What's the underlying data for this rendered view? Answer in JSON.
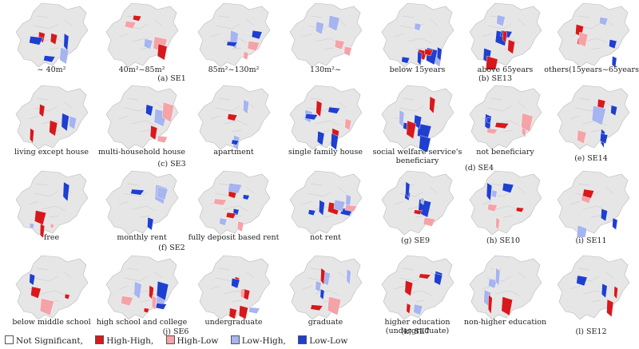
{
  "panels": [
    {
      "label": "~ 40m²"
    },
    {
      "label": "40m²~85m²"
    },
    {
      "label": "85m²~130m²"
    },
    {
      "label": "130m²~"
    },
    {
      "label": "below 15years"
    },
    {
      "label": "above 65years"
    },
    {
      "label": "others(15years~65years)"
    },
    {
      "label": "living except house"
    },
    {
      "label": "multi-household house"
    },
    {
      "label": "apartment"
    },
    {
      "label": "single family house"
    },
    {
      "label": "social welfare service's beneficiary"
    },
    {
      "label": "not beneficiary"
    },
    {
      "label": ""
    },
    {
      "label": "free"
    },
    {
      "label": "monthly rent"
    },
    {
      "label": "fully deposit based  rent"
    },
    {
      "label": "not rent"
    },
    {
      "label": ""
    },
    {
      "label": ""
    },
    {
      "label": ""
    },
    {
      "label": "below middle school"
    },
    {
      "label": "high school and college"
    },
    {
      "label": "undergraduate"
    },
    {
      "label": "graduate"
    },
    {
      "label": "higher education (undergraduate)"
    },
    {
      "label": "non-higher education"
    },
    {
      "label": ""
    }
  ],
  "groups": [
    "(a)  SE1",
    "(b)  SE13",
    "(c)  SE3",
    "(d)  SE4",
    "(e)  SE14",
    "(f)  SE2",
    "(g)  SE9",
    "(h)  SE10",
    "(i)  SE11",
    "(j)  SE6",
    "(k)  SE7",
    "(l)  SE12"
  ],
  "legend": [
    {
      "label": "Not Significant,",
      "color": "#ffffff"
    },
    {
      "label": "High-High,",
      "color": "#d7191c"
    },
    {
      "label": "High-Low",
      "color": "#f4a3a8"
    },
    {
      "label": "Low-High,",
      "color": "#a6b4ef"
    },
    {
      "label": "Low-Low",
      "color": "#1f3fd0"
    }
  ],
  "colors": {
    "base": "#e6e6e6",
    "HH": "#d7191c",
    "HL": "#f4a3a8",
    "LH": "#a6b4ef",
    "LL": "#1f3fd0"
  }
}
